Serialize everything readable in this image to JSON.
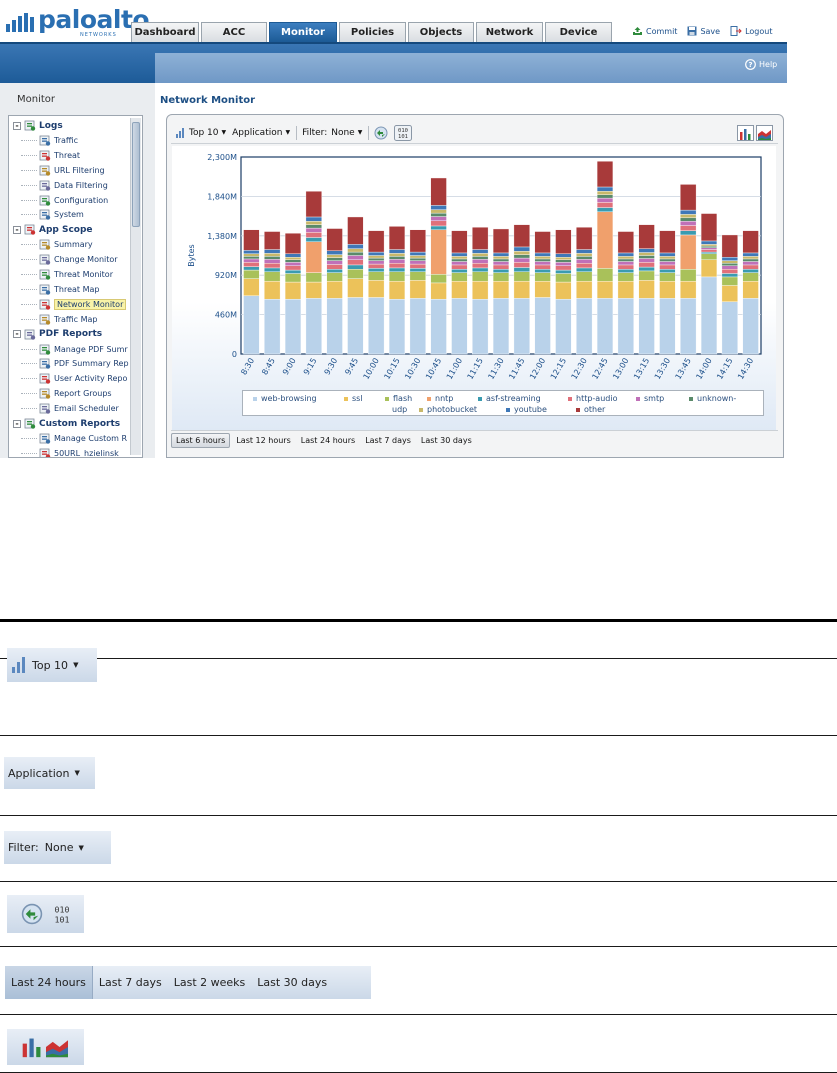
{
  "app": {
    "brand": "paloalto",
    "brand_sub": "NETWORKS",
    "page_title": "Network Monitor",
    "sidebar_title": "Monitor"
  },
  "tabs": [
    {
      "label": "Dashboard",
      "active": false
    },
    {
      "label": "ACC",
      "active": false
    },
    {
      "label": "Monitor",
      "active": true
    },
    {
      "label": "Policies",
      "active": false
    },
    {
      "label": "Objects",
      "active": false
    },
    {
      "label": "Network",
      "active": false
    },
    {
      "label": "Device",
      "active": false
    }
  ],
  "actions": {
    "commit": "Commit",
    "save": "Save",
    "logout": "Logout",
    "help": "Help"
  },
  "tree": [
    {
      "label": "Logs",
      "level": 0,
      "kind": "category",
      "icon": "logs-folder-icon"
    },
    {
      "label": "Traffic",
      "level": 1,
      "icon": "traffic-log-icon"
    },
    {
      "label": "Threat",
      "level": 1,
      "icon": "threat-log-icon"
    },
    {
      "label": "URL Filtering",
      "level": 1,
      "icon": "url-filtering-icon"
    },
    {
      "label": "Data Filtering",
      "level": 1,
      "icon": "data-filtering-icon"
    },
    {
      "label": "Configuration",
      "level": 1,
      "icon": "configuration-log-icon"
    },
    {
      "label": "System",
      "level": 1,
      "icon": "system-log-icon"
    },
    {
      "label": "App Scope",
      "level": 0,
      "kind": "category",
      "icon": "app-scope-icon"
    },
    {
      "label": "Summary",
      "level": 1,
      "icon": "summary-icon"
    },
    {
      "label": "Change Monitor",
      "level": 1,
      "icon": "change-monitor-icon"
    },
    {
      "label": "Threat Monitor",
      "level": 1,
      "icon": "threat-monitor-icon"
    },
    {
      "label": "Threat Map",
      "level": 1,
      "icon": "threat-map-icon"
    },
    {
      "label": "Network Monitor",
      "level": 1,
      "icon": "network-monitor-icon",
      "selected": true
    },
    {
      "label": "Traffic Map",
      "level": 1,
      "icon": "traffic-map-icon"
    },
    {
      "label": "PDF Reports",
      "level": 0,
      "kind": "category",
      "icon": "pdf-reports-icon"
    },
    {
      "label": "Manage PDF Sumr",
      "level": 1,
      "icon": "pdf-icon"
    },
    {
      "label": "PDF Summary Rep",
      "level": 1,
      "icon": "pdf-icon"
    },
    {
      "label": "User Activity Repo",
      "level": 1,
      "icon": "user-activity-icon"
    },
    {
      "label": "Report Groups",
      "level": 1,
      "icon": "report-groups-icon"
    },
    {
      "label": "Email Scheduler",
      "level": 1,
      "icon": "email-scheduler-icon"
    },
    {
      "label": "Custom Reports",
      "level": 0,
      "kind": "category",
      "icon": "custom-reports-icon"
    },
    {
      "label": "Manage Custom R",
      "level": 1,
      "icon": "manage-custom-icon"
    },
    {
      "label": "50URL_hzielinsk",
      "level": 1,
      "icon": "report-icon"
    }
  ],
  "toolbar": {
    "top": "Top 10",
    "group": "Application",
    "filter_label": "Filter:",
    "filter_value": "None",
    "binary_icon_text": "010\n101"
  },
  "time_ranges": [
    {
      "label": "Last 6 hours",
      "active": true
    },
    {
      "label": "Last 12 hours",
      "active": false
    },
    {
      "label": "Last 24 hours",
      "active": false
    },
    {
      "label": "Last 7 days",
      "active": false
    },
    {
      "label": "Last 30 days",
      "active": false
    }
  ],
  "chart_data": {
    "type": "bar",
    "stacked": true,
    "ylabel": "Bytes",
    "xlabel": "",
    "ylim": [
      0,
      2300
    ],
    "ytick_labels": [
      "0",
      "460M",
      "920M",
      "1,380M",
      "1,840M",
      "2,300M"
    ],
    "ytick_values": [
      0,
      460,
      920,
      1380,
      1840,
      2300
    ],
    "categories": [
      "8:30",
      "8:45",
      "9:00",
      "9:15",
      "9:30",
      "9:45",
      "10:00",
      "10:15",
      "10:30",
      "10:45",
      "11:00",
      "11:15",
      "11:30",
      "11:45",
      "12:00",
      "12:15",
      "12:30",
      "12:45",
      "13:00",
      "13:15",
      "13:30",
      "13:45",
      "14:00",
      "14:15",
      "14:30"
    ],
    "legend": "bottom",
    "series": [
      {
        "name": "web-browsing",
        "color": "#b9d2ea",
        "values": [
          680,
          640,
          640,
          650,
          650,
          660,
          660,
          640,
          650,
          640,
          650,
          640,
          650,
          650,
          660,
          640,
          650,
          650,
          650,
          650,
          650,
          650,
          900,
          610,
          650
        ]
      },
      {
        "name": "ssl",
        "color": "#ecc25a",
        "values": [
          200,
          210,
          200,
          190,
          200,
          220,
          200,
          210,
          210,
          190,
          200,
          210,
          200,
          200,
          190,
          200,
          200,
          200,
          200,
          210,
          200,
          200,
          200,
          190,
          200
        ]
      },
      {
        "name": "flash",
        "color": "#a9c15a",
        "values": [
          100,
          110,
          100,
          110,
          100,
          110,
          100,
          110,
          100,
          100,
          100,
          110,
          100,
          110,
          100,
          100,
          110,
          150,
          100,
          110,
          100,
          140,
          70,
          100,
          100
        ]
      },
      {
        "name": "nntp",
        "color": "#f0a06c",
        "values": [
          0,
          0,
          0,
          360,
          0,
          0,
          0,
          0,
          0,
          520,
          0,
          0,
          0,
          0,
          0,
          0,
          0,
          660,
          0,
          0,
          0,
          400,
          0,
          0,
          0
        ]
      },
      {
        "name": "asf-streaming",
        "color": "#3a9bb0",
        "values": [
          40,
          45,
          40,
          50,
          40,
          50,
          40,
          45,
          40,
          45,
          40,
          45,
          40,
          50,
          40,
          40,
          45,
          50,
          40,
          45,
          40,
          50,
          20,
          40,
          40
        ]
      },
      {
        "name": "http-audio",
        "color": "#e0707a",
        "values": [
          50,
          55,
          50,
          60,
          55,
          60,
          50,
          55,
          50,
          60,
          50,
          55,
          50,
          60,
          50,
          50,
          55,
          60,
          50,
          55,
          50,
          60,
          30,
          50,
          50
        ]
      },
      {
        "name": "smtp",
        "color": "#c070b8",
        "values": [
          40,
          45,
          40,
          50,
          45,
          50,
          40,
          45,
          40,
          50,
          40,
          45,
          40,
          50,
          40,
          40,
          45,
          50,
          40,
          45,
          40,
          50,
          20,
          40,
          40
        ]
      },
      {
        "name": "unknown-udp",
        "color": "#5a8a6a",
        "values": [
          30,
          35,
          30,
          40,
          35,
          40,
          30,
          35,
          30,
          40,
          30,
          35,
          30,
          40,
          30,
          30,
          35,
          40,
          30,
          35,
          30,
          40,
          20,
          30,
          30
        ]
      },
      {
        "name": "photobucket",
        "color": "#c8b86a",
        "values": [
          30,
          35,
          30,
          40,
          35,
          40,
          30,
          35,
          30,
          40,
          30,
          35,
          30,
          40,
          30,
          30,
          35,
          40,
          30,
          35,
          30,
          40,
          20,
          30,
          30
        ]
      },
      {
        "name": "youtube",
        "color": "#3f78b8",
        "values": [
          40,
          45,
          40,
          50,
          45,
          50,
          40,
          45,
          40,
          50,
          40,
          45,
          40,
          50,
          40,
          40,
          45,
          50,
          40,
          45,
          40,
          50,
          40,
          40,
          40
        ]
      },
      {
        "name": "other",
        "color": "#a83a3a",
        "values": [
          240,
          210,
          240,
          300,
          260,
          320,
          250,
          270,
          260,
          320,
          260,
          260,
          280,
          260,
          250,
          280,
          260,
          300,
          250,
          280,
          260,
          300,
          320,
          260,
          260
        ]
      }
    ]
  },
  "reference": {
    "top10": "Top 10",
    "application": "Application",
    "filter_label": "Filter:",
    "filter_value": "None",
    "binary_text": "010\n101",
    "time_ranges": [
      "Last 24 hours",
      "Last 7 days",
      "Last 2 weeks",
      "Last 30 days"
    ]
  }
}
